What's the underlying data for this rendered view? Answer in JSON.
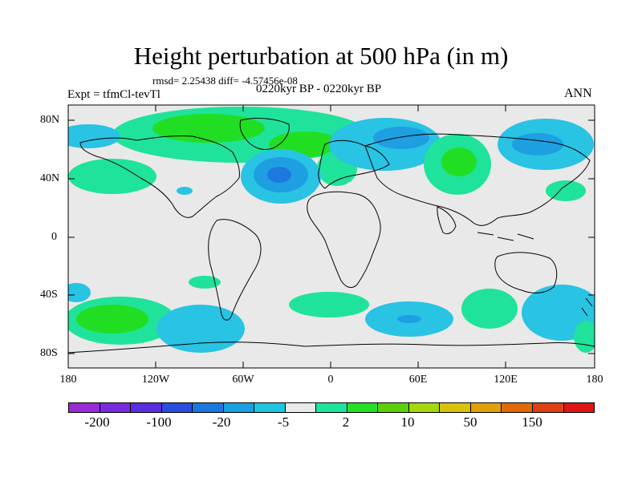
{
  "title": "Height perturbation at 500 hPa (in m)",
  "stats": "rmsd= 2.25438  diff= -4.57456e-08",
  "left_label": "Expt = tfmCl-tevTl",
  "center_label": "0220kyr BP - 0220kyr BP",
  "right_label": "ANN",
  "lat_labels": [
    "80N",
    "40N",
    "0",
    "40S",
    "80S"
  ],
  "lon_labels": [
    "180",
    "120W",
    "60W",
    "0",
    "60E",
    "120E",
    "180"
  ],
  "colorbar": {
    "colors": [
      "#9a2bd6",
      "#7a2be0",
      "#5a2fe0",
      "#2a4fe0",
      "#1a78e0",
      "#1aa0e0",
      "#1fc4e0",
      "#e9e9e9",
      "#1ee49c",
      "#25e025",
      "#5cd10a",
      "#a6d60c",
      "#d8c20a",
      "#e0a20a",
      "#e06a0a",
      "#e04015",
      "#e01515"
    ],
    "labels": [
      "-200",
      "-100",
      "-20",
      "-5",
      "2",
      "10",
      "50",
      "150"
    ]
  },
  "legend_colors": {
    "land_outline": "#000000",
    "background": "#e9e9e9",
    "light_blue": "#29c3e3",
    "mid_blue": "#1e9fe2",
    "dark_blue": "#1c79e0",
    "teal_green": "#1fe39b",
    "green": "#22de22"
  }
}
